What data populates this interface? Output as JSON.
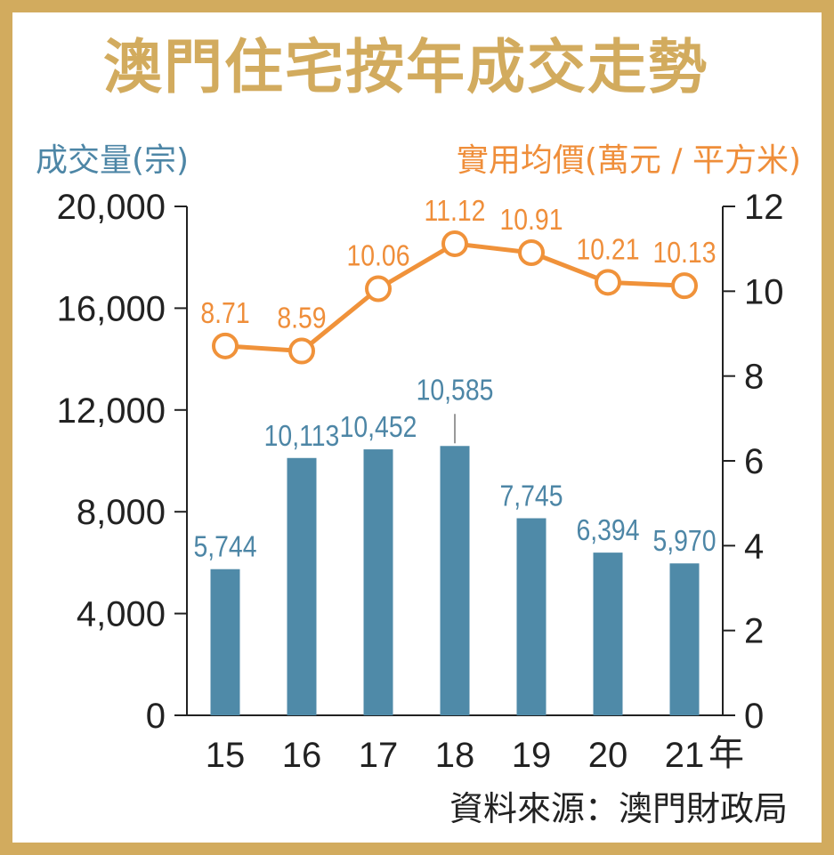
{
  "chart_data": {
    "type": "bar+line",
    "title": "澳門住宅按年成交走勢",
    "left_axis_label": "成交量(宗)",
    "right_axis_label": "實用均價(萬元 / 平方米)",
    "x_unit": "年",
    "categories": [
      "15",
      "16",
      "17",
      "18",
      "19",
      "20",
      "21"
    ],
    "bar_values": [
      5744,
      10113,
      10452,
      10585,
      7745,
      6394,
      5970
    ],
    "bar_labels": [
      "5,744",
      "10,113",
      "10,452",
      "10,585",
      "7,745",
      "6,394",
      "5,970"
    ],
    "line_values": [
      8.71,
      8.59,
      10.06,
      11.12,
      10.91,
      10.21,
      10.13
    ],
    "line_labels": [
      "8.71",
      "8.59",
      "10.06",
      "11.12",
      "10.91",
      "10.21",
      "10.13"
    ],
    "left_ticks": [
      "0",
      "4,000",
      "8,000",
      "12,000",
      "16,000",
      "20,000"
    ],
    "left_ylim": [
      0,
      20000
    ],
    "right_ticks": [
      "0",
      "2",
      "4",
      "6",
      "8",
      "10",
      "12"
    ],
    "right_ylim": [
      0,
      12
    ],
    "source": "資料來源：澳門財政局",
    "colors": {
      "bar": "#4f8aa8",
      "bar_label": "#4d86a6",
      "line": "#f0923a",
      "line_label": "#ef8e3a",
      "title": "#d2ab5e",
      "frame": "#d2ab5e",
      "axis": "#222222"
    }
  }
}
